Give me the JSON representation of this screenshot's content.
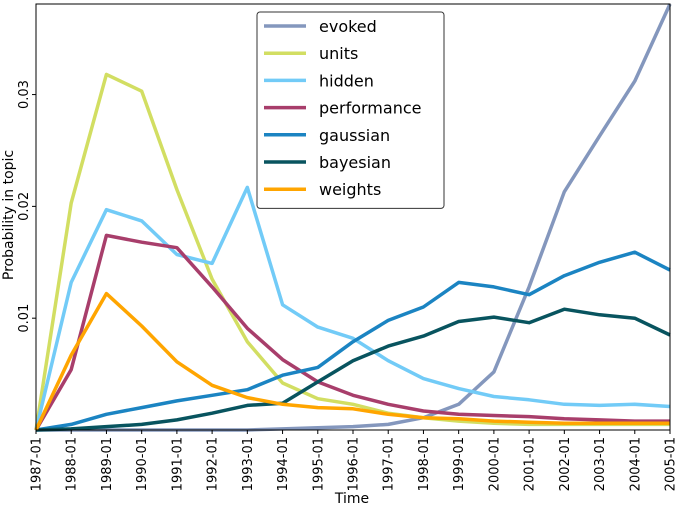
{
  "chart_data": {
    "type": "line",
    "xlabel": "Time",
    "ylabel": "Probability in topic",
    "x": [
      "1987-01",
      "1988-01",
      "1989-01",
      "1990-01",
      "1991-01",
      "1992-01",
      "1993-01",
      "1994-01",
      "1995-01",
      "1996-01",
      "1997-01",
      "1998-01",
      "1999-01",
      "2000-01",
      "2001-01",
      "2002-01",
      "2003-01",
      "2004-01",
      "2005-01"
    ],
    "ylim": [
      0,
      0.0381
    ],
    "yticks": [
      0.01,
      0.02,
      0.03
    ],
    "ytick_labels": [
      "0.01",
      "0.02",
      "0.03"
    ],
    "grid": false,
    "legend_position": "top-center",
    "series": [
      {
        "name": "evoked",
        "color": "#8497bd",
        "values": [
          0.0,
          0.0,
          0.0,
          0.0,
          0.0,
          0.0,
          0.0,
          0.0001,
          0.0002,
          0.0003,
          0.0005,
          0.0011,
          0.0023,
          0.0052,
          0.0128,
          0.0213,
          0.0263,
          0.0312,
          0.0381
        ]
      },
      {
        "name": "units",
        "color": "#d2de62",
        "values": [
          0.0,
          0.0203,
          0.0318,
          0.0303,
          0.0215,
          0.0135,
          0.0079,
          0.0042,
          0.0028,
          0.0023,
          0.0015,
          0.0011,
          0.0008,
          0.0006,
          0.0005,
          0.0005,
          0.0005,
          0.0005,
          0.0005
        ]
      },
      {
        "name": "hidden",
        "color": "#72cbf7",
        "values": [
          0.0,
          0.0132,
          0.0197,
          0.0187,
          0.0157,
          0.0149,
          0.0217,
          0.0112,
          0.0092,
          0.0082,
          0.0062,
          0.0046,
          0.0037,
          0.003,
          0.0027,
          0.0023,
          0.0022,
          0.0023,
          0.0021
        ]
      },
      {
        "name": "performance",
        "color": "#a83e6b",
        "values": [
          0.0,
          0.0054,
          0.0174,
          0.0168,
          0.0163,
          0.0128,
          0.0091,
          0.0063,
          0.0043,
          0.0031,
          0.0023,
          0.0017,
          0.0014,
          0.0013,
          0.0012,
          0.001,
          0.0009,
          0.0008,
          0.0008
        ]
      },
      {
        "name": "gaussian",
        "color": "#1b84c2",
        "values": [
          0.0,
          0.0005,
          0.0014,
          0.002,
          0.0026,
          0.0031,
          0.0036,
          0.0049,
          0.0056,
          0.0079,
          0.0098,
          0.011,
          0.0132,
          0.0128,
          0.0121,
          0.0138,
          0.015,
          0.0159,
          0.0143
        ]
      },
      {
        "name": "bayesian",
        "color": "#08545f",
        "values": [
          0.0,
          0.0001,
          0.0003,
          0.0005,
          0.0009,
          0.0015,
          0.0022,
          0.0024,
          0.0043,
          0.0062,
          0.0075,
          0.0084,
          0.0097,
          0.0101,
          0.0096,
          0.0108,
          0.0103,
          0.01,
          0.0085
        ]
      },
      {
        "name": "weights",
        "color": "#ffa500",
        "values": [
          0.0,
          0.0067,
          0.0122,
          0.0093,
          0.0061,
          0.004,
          0.0029,
          0.0023,
          0.002,
          0.0019,
          0.0014,
          0.0011,
          0.001,
          0.0008,
          0.0007,
          0.0006,
          0.0006,
          0.0006,
          0.0006
        ]
      }
    ]
  }
}
